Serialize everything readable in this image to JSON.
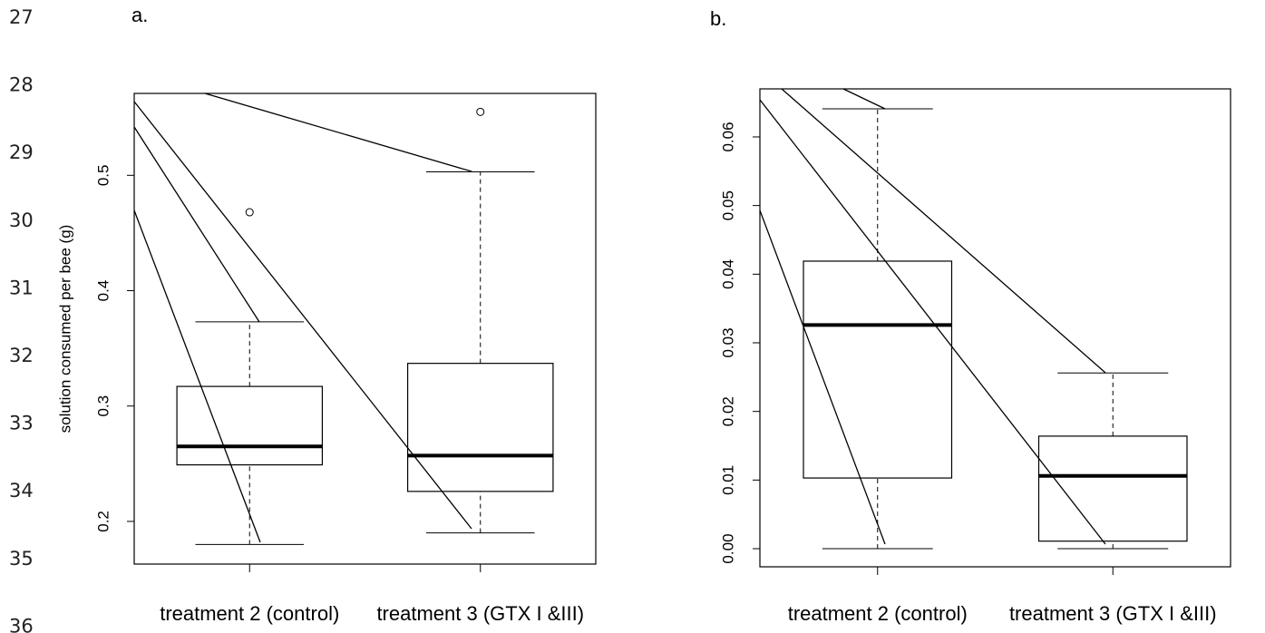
{
  "line_numbers": [
    "27",
    "28",
    "29",
    "30",
    "31",
    "32",
    "33",
    "34",
    "35",
    "36"
  ],
  "chart_data": [
    {
      "type": "box",
      "panel_label": "a.",
      "y_label": "solution consumed per bee (g)",
      "categories": [
        "treatment 2 (control)",
        "treatment 3 (GTX I &III)"
      ],
      "min": [
        0.18,
        0.19
      ],
      "q1": [
        0.249,
        0.226
      ],
      "median": [
        0.265,
        0.257
      ],
      "q3": [
        0.317,
        0.337
      ],
      "max": [
        0.373,
        0.503
      ],
      "outliers": [
        [
          0.468
        ],
        [
          0.555
        ]
      ],
      "ylim": [
        0.163,
        0.571
      ],
      "yticks": [
        0.2,
        0.3,
        0.4,
        0.5
      ]
    },
    {
      "type": "box",
      "panel_label": "b.",
      "categories": [
        "treatment 2 (control)",
        "treatment 3 (GTX I &III)"
      ],
      "min": [
        0.0,
        0.0
      ],
      "q1": [
        0.0103,
        0.0011
      ],
      "median": [
        0.0326,
        0.0106
      ],
      "q3": [
        0.0419,
        0.0164
      ],
      "max": [
        0.0641,
        0.0256
      ],
      "ylim": [
        -0.00264,
        0.067
      ],
      "yticks": [
        {
          "value": 0,
          "label": "0.00"
        },
        0.01,
        0.02,
        0.03,
        0.04,
        0.05,
        0.06
      ]
    }
  ]
}
